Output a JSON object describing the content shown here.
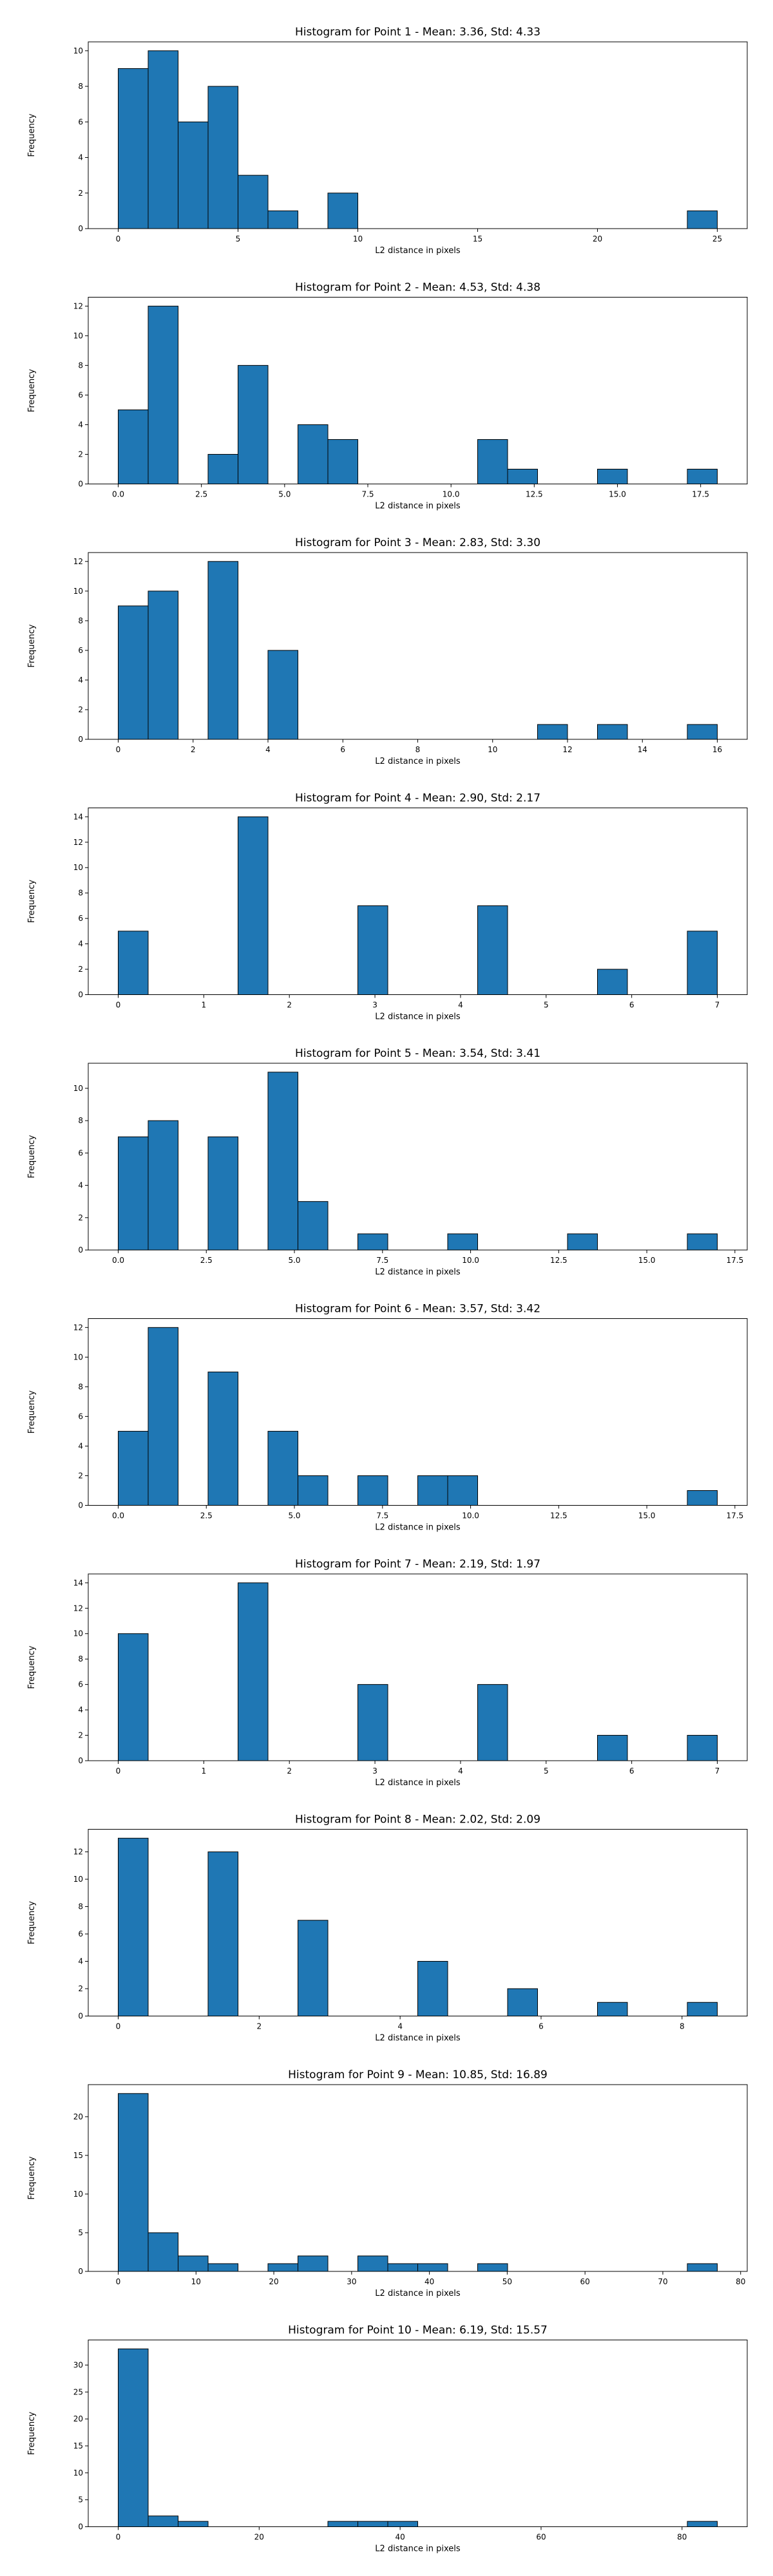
{
  "chart_data": [
    {
      "type": "bar",
      "title": "Histogram for Point 1 - Mean: 3.36, Std: 4.33",
      "xlabel": "L2 distance in pixels",
      "ylabel": "Frequency",
      "bin_edges": [
        0,
        1.25,
        2.5,
        3.75,
        5,
        6.25,
        7.5,
        8.75,
        10,
        11.25,
        12.5,
        13.75,
        15,
        16.25,
        17.5,
        18.75,
        20,
        21.25,
        22.5,
        23.75,
        25
      ],
      "counts": [
        9,
        10,
        6,
        8,
        3,
        1,
        0,
        2,
        0,
        0,
        0,
        0,
        0,
        0,
        0,
        0,
        0,
        0,
        0,
        1
      ],
      "xticks": [
        0,
        5,
        10,
        15,
        20,
        25
      ],
      "xtick_labels": [
        "0",
        "5",
        "10",
        "15",
        "20",
        "25"
      ],
      "yticks": [
        0,
        2,
        4,
        6,
        8,
        10
      ],
      "yticks_labels": [
        "0",
        "2",
        "4",
        "6",
        "8",
        "10"
      ],
      "xlim": [
        -1.25,
        26.25
      ],
      "ylim": [
        0,
        10.5
      ]
    },
    {
      "type": "bar",
      "title": "Histogram for Point 2 - Mean: 4.53, Std: 4.38",
      "xlabel": "L2 distance in pixels",
      "ylabel": "Frequency",
      "bin_edges": [
        0,
        0.9,
        1.8,
        2.7,
        3.6,
        4.5,
        5.4,
        6.3,
        7.2,
        8.1,
        9,
        9.9,
        10.8,
        11.7,
        12.6,
        13.5,
        14.4,
        15.3,
        16.2,
        17.1,
        18
      ],
      "counts": [
        5,
        12,
        0,
        2,
        8,
        0,
        4,
        3,
        0,
        0,
        0,
        0,
        3,
        1,
        0,
        0,
        1,
        0,
        0,
        1
      ],
      "xticks": [
        0,
        2.5,
        5,
        7.5,
        10,
        12.5,
        15,
        17.5
      ],
      "xtick_labels": [
        "0.0",
        "2.5",
        "5.0",
        "7.5",
        "10.0",
        "12.5",
        "15.0",
        "17.5"
      ],
      "yticks": [
        0,
        2,
        4,
        6,
        8,
        10,
        12
      ],
      "yticks_labels": [
        "0",
        "2",
        "4",
        "6",
        "8",
        "10",
        "12"
      ],
      "xlim": [
        -0.9,
        18.9
      ],
      "ylim": [
        0,
        12.6
      ]
    },
    {
      "type": "bar",
      "title": "Histogram for Point 3 - Mean: 2.83, Std: 3.30",
      "xlabel": "L2 distance in pixels",
      "ylabel": "Frequency",
      "bin_edges": [
        0,
        0.8,
        1.6,
        2.4,
        3.2,
        4,
        4.8,
        5.6,
        6.4,
        7.2,
        8,
        8.8,
        9.6,
        10.4,
        11.2,
        12,
        12.8,
        13.6,
        14.4,
        15.2,
        16
      ],
      "counts": [
        9,
        10,
        0,
        12,
        0,
        6,
        0,
        0,
        0,
        0,
        0,
        0,
        0,
        0,
        1,
        0,
        1,
        0,
        0,
        1
      ],
      "xticks": [
        0,
        2,
        4,
        6,
        8,
        10,
        12,
        14,
        16
      ],
      "xtick_labels": [
        "0",
        "2",
        "4",
        "6",
        "8",
        "10",
        "12",
        "14",
        "16"
      ],
      "yticks": [
        0,
        2,
        4,
        6,
        8,
        10,
        12
      ],
      "yticks_labels": [
        "0",
        "2",
        "4",
        "6",
        "8",
        "10",
        "12"
      ],
      "xlim": [
        -0.8,
        16.8
      ],
      "ylim": [
        0,
        12.6
      ]
    },
    {
      "type": "bar",
      "title": "Histogram for Point 4 - Mean: 2.90, Std: 2.17",
      "xlabel": "L2 distance in pixels",
      "ylabel": "Frequency",
      "bin_edges": [
        0,
        0.35,
        0.7,
        1.05,
        1.4,
        1.75,
        2.1,
        2.45,
        2.8,
        3.15,
        3.5,
        3.85,
        4.2,
        4.55,
        4.9,
        5.25,
        5.6,
        5.95,
        6.3,
        6.65,
        7
      ],
      "counts": [
        5,
        0,
        0,
        0,
        14,
        0,
        0,
        0,
        7,
        0,
        0,
        0,
        7,
        0,
        0,
        0,
        2,
        0,
        0,
        5
      ],
      "xticks": [
        0,
        1,
        2,
        3,
        4,
        5,
        6,
        7
      ],
      "xtick_labels": [
        "0",
        "1",
        "2",
        "3",
        "4",
        "5",
        "6",
        "7"
      ],
      "yticks": [
        0,
        2,
        4,
        6,
        8,
        10,
        12,
        14
      ],
      "yticks_labels": [
        "0",
        "2",
        "4",
        "6",
        "8",
        "10",
        "12",
        "14"
      ],
      "xlim": [
        -0.35,
        7.35
      ],
      "ylim": [
        0,
        14.7
      ]
    },
    {
      "type": "bar",
      "title": "Histogram for Point 5 - Mean: 3.54, Std: 3.41",
      "xlabel": "L2 distance in pixels",
      "ylabel": "Frequency",
      "bin_edges": [
        0,
        0.85,
        1.7,
        2.55,
        3.4,
        4.25,
        5.1,
        5.95,
        6.8,
        7.65,
        8.5,
        9.35,
        10.2,
        11.05,
        11.9,
        12.75,
        13.6,
        14.45,
        15.3,
        16.15,
        17
      ],
      "counts": [
        7,
        8,
        0,
        7,
        0,
        11,
        3,
        0,
        1,
        0,
        0,
        1,
        0,
        0,
        0,
        1,
        0,
        0,
        0,
        1
      ],
      "xticks": [
        0,
        2.5,
        5,
        7.5,
        10,
        12.5,
        15,
        17.5
      ],
      "xtick_labels": [
        "0.0",
        "2.5",
        "5.0",
        "7.5",
        "10.0",
        "12.5",
        "15.0",
        "17.5"
      ],
      "yticks": [
        0,
        2,
        4,
        6,
        8,
        10
      ],
      "yticks_labels": [
        "0",
        "2",
        "4",
        "6",
        "8",
        "10"
      ],
      "xlim": [
        -0.85,
        17.85
      ],
      "ylim": [
        0,
        11.55
      ]
    },
    {
      "type": "bar",
      "title": "Histogram for Point 6 - Mean: 3.57, Std: 3.42",
      "xlabel": "L2 distance in pixels",
      "ylabel": "Frequency",
      "bin_edges": [
        0,
        0.85,
        1.7,
        2.55,
        3.4,
        4.25,
        5.1,
        5.95,
        6.8,
        7.65,
        8.5,
        9.35,
        10.2,
        11.05,
        11.9,
        12.75,
        13.6,
        14.45,
        15.3,
        16.15,
        17
      ],
      "counts": [
        5,
        12,
        0,
        9,
        0,
        5,
        2,
        0,
        2,
        0,
        2,
        2,
        0,
        0,
        0,
        0,
        0,
        0,
        0,
        1
      ],
      "xticks": [
        0,
        2.5,
        5,
        7.5,
        10,
        12.5,
        15,
        17.5
      ],
      "xtick_labels": [
        "0.0",
        "2.5",
        "5.0",
        "7.5",
        "10.0",
        "12.5",
        "15.0",
        "17.5"
      ],
      "yticks": [
        0,
        2,
        4,
        6,
        8,
        10,
        12
      ],
      "yticks_labels": [
        "0",
        "2",
        "4",
        "6",
        "8",
        "10",
        "12"
      ],
      "xlim": [
        -0.85,
        17.85
      ],
      "ylim": [
        0,
        12.6
      ]
    },
    {
      "type": "bar",
      "title": "Histogram for Point 7 - Mean: 2.19, Std: 1.97",
      "xlabel": "L2 distance in pixels",
      "ylabel": "Frequency",
      "bin_edges": [
        0,
        0.35,
        0.7,
        1.05,
        1.4,
        1.75,
        2.1,
        2.45,
        2.8,
        3.15,
        3.5,
        3.85,
        4.2,
        4.55,
        4.9,
        5.25,
        5.6,
        5.95,
        6.3,
        6.65,
        7
      ],
      "counts": [
        10,
        0,
        0,
        0,
        14,
        0,
        0,
        0,
        6,
        0,
        0,
        0,
        6,
        0,
        0,
        0,
        2,
        0,
        0,
        2
      ],
      "xticks": [
        0,
        1,
        2,
        3,
        4,
        5,
        6,
        7
      ],
      "xtick_labels": [
        "0",
        "1",
        "2",
        "3",
        "4",
        "5",
        "6",
        "7"
      ],
      "yticks": [
        0,
        2,
        4,
        6,
        8,
        10,
        12,
        14
      ],
      "yticks_labels": [
        "0",
        "2",
        "4",
        "6",
        "8",
        "10",
        "12",
        "14"
      ],
      "xlim": [
        -0.35,
        7.35
      ],
      "ylim": [
        0,
        14.7
      ]
    },
    {
      "type": "bar",
      "title": "Histogram for Point 8 - Mean: 2.02, Std: 2.09",
      "xlabel": "L2 distance in pixels",
      "ylabel": "Frequency",
      "bin_edges": [
        0,
        0.425,
        0.85,
        1.275,
        1.7,
        2.125,
        2.55,
        2.975,
        3.4,
        3.825,
        4.25,
        4.675,
        5.1,
        5.525,
        5.95,
        6.375,
        6.8,
        7.225,
        7.65,
        8.075,
        8.5
      ],
      "counts": [
        13,
        0,
        0,
        12,
        0,
        0,
        7,
        0,
        0,
        0,
        4,
        0,
        0,
        2,
        0,
        0,
        1,
        0,
        0,
        1
      ],
      "xticks": [
        0,
        2,
        4,
        6,
        8
      ],
      "xtick_labels": [
        "0",
        "2",
        "4",
        "6",
        "8"
      ],
      "yticks": [
        0,
        2,
        4,
        6,
        8,
        10,
        12
      ],
      "yticks_labels": [
        "0",
        "2",
        "4",
        "6",
        "8",
        "10",
        "12"
      ],
      "xlim": [
        -0.425,
        8.925
      ],
      "ylim": [
        0,
        13.65
      ]
    },
    {
      "type": "bar",
      "title": "Histogram for Point 9 - Mean: 10.85, Std: 16.89",
      "xlabel": "L2 distance in pixels",
      "ylabel": "Frequency",
      "bin_edges": [
        0,
        3.85,
        7.7,
        11.55,
        15.4,
        19.25,
        23.1,
        26.95,
        30.8,
        34.65,
        38.5,
        42.35,
        46.2,
        50.05,
        53.9,
        57.75,
        61.6,
        65.45,
        69.3,
        73.15,
        77
      ],
      "counts": [
        23,
        5,
        2,
        1,
        0,
        1,
        2,
        0,
        2,
        1,
        1,
        0,
        1,
        0,
        0,
        0,
        0,
        0,
        0,
        1
      ],
      "xticks": [
        0,
        10,
        20,
        30,
        40,
        50,
        60,
        70,
        80
      ],
      "xtick_labels": [
        "0",
        "10",
        "20",
        "30",
        "40",
        "50",
        "60",
        "70",
        "80"
      ],
      "yticks": [
        0,
        5,
        10,
        15,
        20
      ],
      "yticks_labels": [
        "0",
        "5",
        "10",
        "15",
        "20"
      ],
      "xlim": [
        -3.85,
        80.85
      ],
      "ylim": [
        0,
        24.15
      ]
    },
    {
      "type": "bar",
      "title": "Histogram for Point 10 - Mean: 6.19, Std: 15.57",
      "xlabel": "L2 distance in pixels",
      "ylabel": "Frequency",
      "bin_edges": [
        0,
        4.25,
        8.5,
        12.75,
        17,
        21.25,
        25.5,
        29.75,
        34,
        38.25,
        42.5,
        46.75,
        51,
        55.25,
        59.5,
        63.75,
        68,
        72.25,
        76.5,
        80.75,
        85
      ],
      "counts": [
        33,
        2,
        1,
        0,
        0,
        0,
        0,
        1,
        1,
        1,
        0,
        0,
        0,
        0,
        0,
        0,
        0,
        0,
        0,
        1
      ],
      "xticks": [
        0,
        20,
        40,
        60,
        80
      ],
      "xtick_labels": [
        "0",
        "20",
        "40",
        "60",
        "80"
      ],
      "yticks": [
        0,
        5,
        10,
        15,
        20,
        25,
        30
      ],
      "yticks_labels": [
        "0",
        "5",
        "10",
        "15",
        "20",
        "25",
        "30"
      ],
      "xlim": [
        -4.25,
        89.25
      ],
      "ylim": [
        0,
        34.65
      ]
    }
  ]
}
